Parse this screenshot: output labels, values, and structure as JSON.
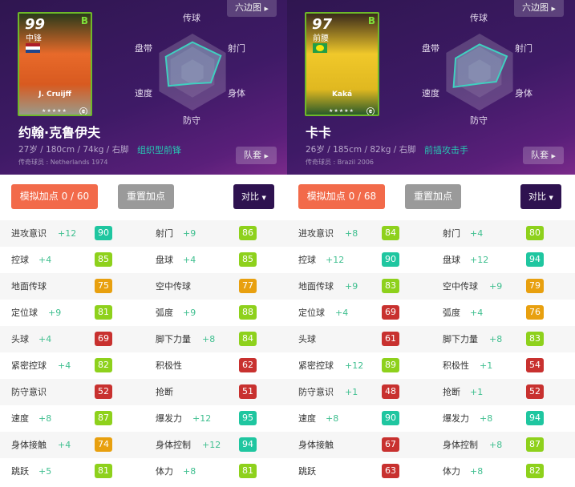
{
  "colors": {
    "teal": "#1fc6a0",
    "green": "#8ed11c",
    "orange": "#e8a00f",
    "red": "#c8312f",
    "accent": "#f26a4a",
    "role": "#27c9b4"
  },
  "radar_labels": [
    "传球",
    "射门",
    "身体",
    "防守",
    "速度",
    "盘带"
  ],
  "players": [
    {
      "card": {
        "ovr": "99",
        "pos": "中锋",
        "grade": "B",
        "name": "J. Cruijff",
        "flag": "netherlands-flag",
        "stars": "★★★★★"
      },
      "name": "约翰·克鲁伊夫",
      "info": "27岁 / 180cm / 74kg / 右脚",
      "role": "组织型前锋",
      "legend": "传奇球员 : Netherlands 1974",
      "hex_button": "六边图",
      "kit_button": "队套",
      "sim_button": "模拟加点 0 / 60",
      "reset_button": "重置加点",
      "compare_button": "对比",
      "radar": [
        0.78,
        0.85,
        0.55,
        0.3,
        0.72,
        0.8
      ],
      "stats": [
        [
          {
            "l": "进攻意识",
            "p": "+12",
            "v": 90
          },
          {
            "l": "射门",
            "p": "+9",
            "v": 86
          }
        ],
        [
          {
            "l": "控球",
            "p": "+4",
            "v": 85
          },
          {
            "l": "盘球",
            "p": "+4",
            "v": 85
          }
        ],
        [
          {
            "l": "地面传球",
            "p": "",
            "v": 75
          },
          {
            "l": "空中传球",
            "p": "",
            "v": 77
          }
        ],
        [
          {
            "l": "定位球",
            "p": "+9",
            "v": 81
          },
          {
            "l": "弧度",
            "p": "+9",
            "v": 88
          }
        ],
        [
          {
            "l": "头球",
            "p": "+4",
            "v": 69
          },
          {
            "l": "脚下力量",
            "p": "+8",
            "v": 84
          }
        ],
        [
          {
            "l": "紧密控球",
            "p": "+4",
            "v": 82
          },
          {
            "l": "积极性",
            "p": "",
            "v": 62
          }
        ],
        [
          {
            "l": "防守意识",
            "p": "",
            "v": 52
          },
          {
            "l": "抢断",
            "p": "",
            "v": 51
          }
        ],
        [
          {
            "l": "速度",
            "p": "+8",
            "v": 87
          },
          {
            "l": "爆发力",
            "p": "+12",
            "v": 95
          }
        ],
        [
          {
            "l": "身体接触",
            "p": "+4",
            "v": 74
          },
          {
            "l": "身体控制",
            "p": "+12",
            "v": 94
          }
        ],
        [
          {
            "l": "跳跃",
            "p": "+5",
            "v": 81
          },
          {
            "l": "体力",
            "p": "+8",
            "v": 81
          }
        ]
      ]
    },
    {
      "card": {
        "ovr": "97",
        "pos": "前腰",
        "grade": "B",
        "name": "Kaká",
        "flag": "brazil-flag",
        "stars": "★★★★★"
      },
      "name": "卡卡",
      "info": "26岁 / 185cm / 82kg / 右脚",
      "role": "前插攻击手",
      "legend": "传奇球员 : Brazil 2006",
      "hex_button": "六边图",
      "kit_button": "队套",
      "sim_button": "模拟加点 0 / 68",
      "reset_button": "重置加点",
      "compare_button": "对比",
      "radar": [
        0.72,
        0.82,
        0.5,
        0.3,
        0.78,
        0.72
      ],
      "stats": [
        [
          {
            "l": "进攻意识",
            "p": "+8",
            "v": 84
          },
          {
            "l": "射门",
            "p": "+4",
            "v": 80
          }
        ],
        [
          {
            "l": "控球",
            "p": "+12",
            "v": 90
          },
          {
            "l": "盘球",
            "p": "+12",
            "v": 94
          }
        ],
        [
          {
            "l": "地面传球",
            "p": "+9",
            "v": 83
          },
          {
            "l": "空中传球",
            "p": "+9",
            "v": 79
          }
        ],
        [
          {
            "l": "定位球",
            "p": "+4",
            "v": 69
          },
          {
            "l": "弧度",
            "p": "+4",
            "v": 76
          }
        ],
        [
          {
            "l": "头球",
            "p": "",
            "v": 61
          },
          {
            "l": "脚下力量",
            "p": "+8",
            "v": 83
          }
        ],
        [
          {
            "l": "紧密控球",
            "p": "+12",
            "v": 89
          },
          {
            "l": "积极性",
            "p": "+1",
            "v": 54
          }
        ],
        [
          {
            "l": "防守意识",
            "p": "+1",
            "v": 48
          },
          {
            "l": "抢断",
            "p": "+1",
            "v": 52
          }
        ],
        [
          {
            "l": "速度",
            "p": "+8",
            "v": 90
          },
          {
            "l": "爆发力",
            "p": "+8",
            "v": 94
          }
        ],
        [
          {
            "l": "身体接触",
            "p": "",
            "v": 67
          },
          {
            "l": "身体控制",
            "p": "+8",
            "v": 87
          }
        ],
        [
          {
            "l": "跳跃",
            "p": "",
            "v": 63
          },
          {
            "l": "体力",
            "p": "+8",
            "v": 82
          }
        ]
      ]
    }
  ]
}
